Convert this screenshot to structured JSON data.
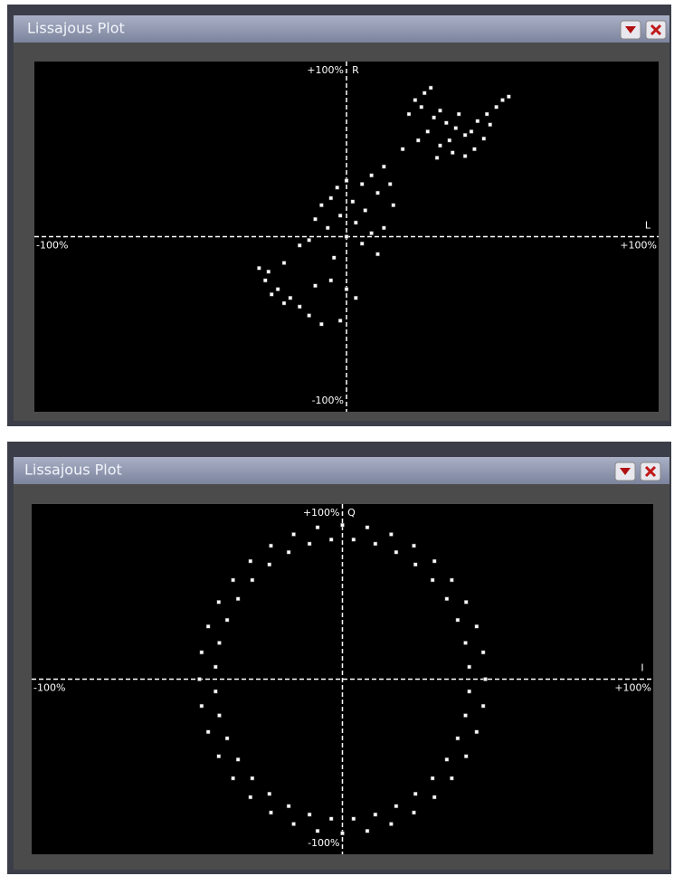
{
  "chart_data": [
    {
      "type": "scatter",
      "title": "Lissajous Plot",
      "x_label": "L",
      "y_label": "R",
      "color": "#ffffff",
      "xlim": [
        -100,
        100
      ],
      "ylim": [
        -100,
        100
      ],
      "xticks": [
        {
          "value": -100,
          "label": "-100%"
        },
        {
          "value": 100,
          "label": "+100%"
        }
      ],
      "yticks": [
        {
          "value": -100,
          "label": "-100%"
        },
        {
          "value": 100,
          "label": "+100%"
        }
      ],
      "x": [
        20,
        22,
        25,
        27,
        24,
        28,
        30,
        32,
        26,
        35,
        38,
        33,
        40,
        36,
        42,
        45,
        48,
        50,
        52,
        46,
        41,
        38,
        34,
        30,
        44,
        29,
        23,
        18,
        12,
        8,
        5,
        0,
        -3,
        2,
        -5,
        -8,
        6,
        10,
        14,
        15,
        -2,
        3,
        -10,
        -6,
        8,
        12,
        -12,
        0,
        5,
        -15,
        10,
        -4,
        -20,
        -25,
        -22,
        -18,
        -10,
        -5,
        0,
        3,
        -15,
        -12,
        -8,
        -2,
        -20,
        -24,
        -28,
        -26
      ],
      "y": [
        70,
        78,
        82,
        85,
        74,
        68,
        72,
        65,
        60,
        62,
        58,
        55,
        60,
        70,
        66,
        70,
        74,
        78,
        80,
        64,
        50,
        46,
        48,
        52,
        56,
        45,
        55,
        50,
        40,
        35,
        30,
        32,
        28,
        20,
        22,
        18,
        15,
        25,
        30,
        18,
        12,
        8,
        10,
        5,
        2,
        5,
        -2,
        0,
        -4,
        -5,
        -10,
        -12,
        -15,
        -20,
        -30,
        -35,
        -28,
        -25,
        -30,
        -35,
        -40,
        -45,
        -50,
        -48,
        -38,
        -33,
        -18,
        -25
      ]
    },
    {
      "type": "scatter",
      "title": "Lissajous Plot",
      "x_label": "I",
      "y_label": "Q",
      "color": "#ffffff",
      "xlim": [
        -100,
        100
      ],
      "ylim": [
        -100,
        100
      ],
      "xticks": [
        {
          "value": -100,
          "label": "-100%"
        },
        {
          "value": 100,
          "label": "+100%"
        }
      ],
      "yticks": [
        {
          "value": -100,
          "label": "-100%"
        },
        {
          "value": 100,
          "label": "+100%"
        }
      ],
      "x": [
        46,
        45.3,
        43.2,
        39.8,
        35.2,
        29.6,
        23,
        15.7,
        8,
        0,
        -8,
        -15.7,
        -23,
        -29.6,
        -35.2,
        -39.8,
        -43.2,
        -45.3,
        -46,
        -45.3,
        -43.2,
        -39.8,
        -35.2,
        -29.6,
        -23,
        -15.7,
        -8,
        0,
        8,
        15.7,
        23,
        29.6,
        35.2,
        39.8,
        43.2,
        45.3,
        40.8,
        39.6,
        37.1,
        33.6,
        29,
        23.5,
        17.3,
        10.6,
        3.6,
        -3.6,
        -10.6,
        -17.3,
        -23.5,
        -29,
        -33.6,
        -37.1,
        -39.6,
        -40.8,
        -40.8,
        -39.6,
        -37.1,
        -33.6,
        -29,
        -23.5,
        -17.3,
        -10.6,
        -3.6,
        3.6,
        10.6,
        17.3,
        23.5,
        29,
        33.6,
        37.1,
        39.6,
        40.8
      ],
      "y": [
        0,
        15.3,
        30.1,
        44,
        56.6,
        67.4,
        76.2,
        82.7,
        86.7,
        88,
        86.7,
        82.7,
        76.2,
        67.4,
        56.6,
        44,
        30.1,
        15.3,
        0,
        -15.3,
        -30.1,
        -44,
        -56.6,
        -67.4,
        -76.2,
        -82.7,
        -86.7,
        -88,
        -86.7,
        -82.7,
        -76.2,
        -67.4,
        -56.6,
        -44,
        -30.1,
        -15.3,
        7,
        20.7,
        33.8,
        45.9,
        56.6,
        65.5,
        72.5,
        77.3,
        79.7,
        79.7,
        77.3,
        72.5,
        65.5,
        56.6,
        45.9,
        33.8,
        20.7,
        7,
        -7,
        -20.7,
        -33.8,
        -45.9,
        -56.6,
        -65.5,
        -72.5,
        -77.3,
        -79.7,
        -79.7,
        -77.3,
        -72.5,
        -65.5,
        -56.6,
        -45.9,
        -33.8,
        -20.7,
        -7
      ]
    }
  ]
}
